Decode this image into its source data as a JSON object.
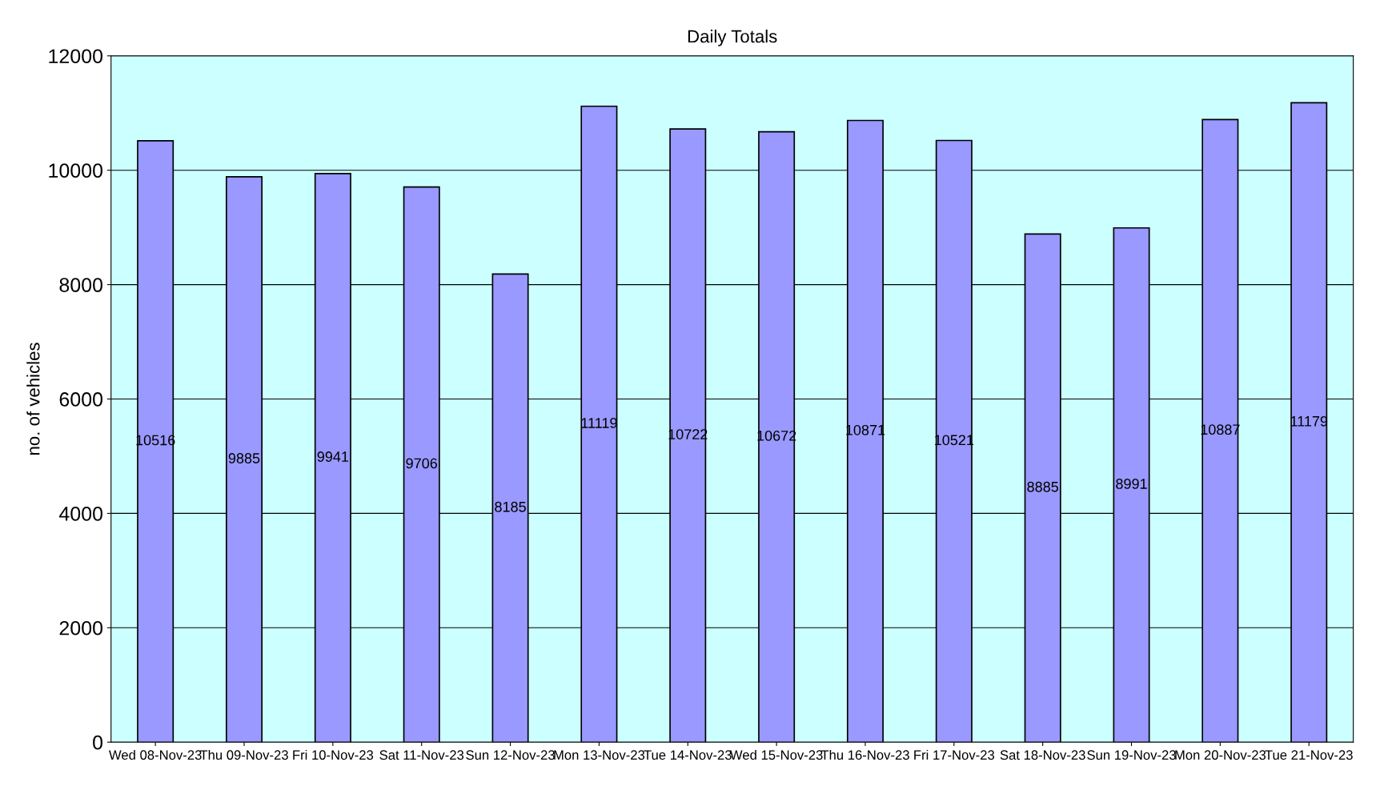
{
  "chart_data": {
    "type": "bar",
    "title": "Daily Totals",
    "ylabel": "no. of vehicles",
    "categories": [
      "Wed 08-Nov-23",
      "Thu 09-Nov-23",
      "Fri 10-Nov-23",
      "Sat 11-Nov-23",
      "Sun 12-Nov-23",
      "Mon 13-Nov-23",
      "Tue 14-Nov-23",
      "Wed 15-Nov-23",
      "Thu 16-Nov-23",
      "Fri 17-Nov-23",
      "Sat 18-Nov-23",
      "Sun 19-Nov-23",
      "Mon 20-Nov-23",
      "Tue 21-Nov-23"
    ],
    "values": [
      10516,
      9885,
      9941,
      9706,
      8185,
      11119,
      10722,
      10672,
      10871,
      10521,
      8885,
      8991,
      10887,
      11179
    ],
    "color": "#9999ff",
    "ylim": [
      0,
      12000
    ],
    "yticks": [
      0,
      2000,
      4000,
      6000,
      8000,
      10000,
      12000
    ],
    "grid": "y",
    "data_labels": true
  }
}
